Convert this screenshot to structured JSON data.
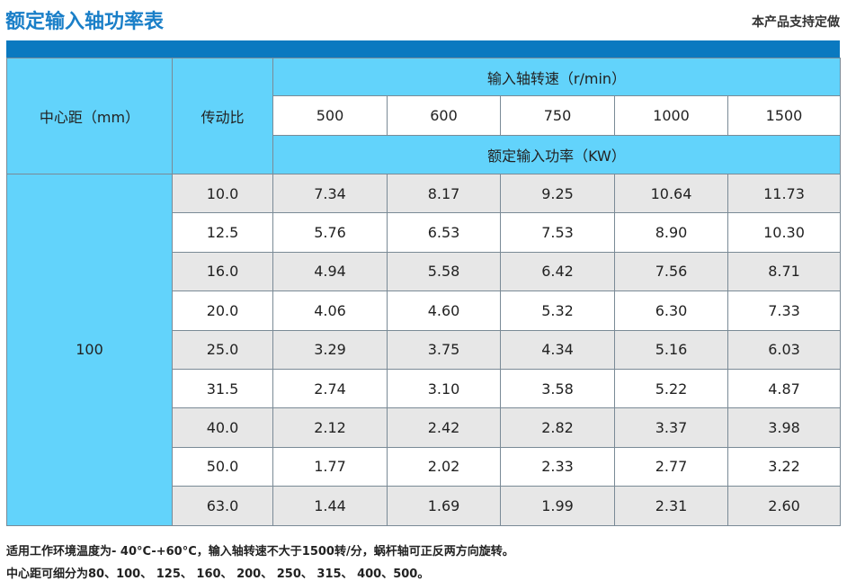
{
  "title": "额定输入轴功率表",
  "note_right": "本产品支持定做",
  "table": {
    "center_distance_header": "中心距（mm）",
    "ratio_header": "传动比",
    "speed_header": "输入轴转速（r/min）",
    "speeds": [
      "500",
      "600",
      "750",
      "1000",
      "1500"
    ],
    "power_header": "额定输入功率（KW）",
    "center_distance": "100",
    "rows": [
      {
        "ratio": "10.0",
        "values": [
          "7.34",
          "8.17",
          "9.25",
          "10.64",
          "11.73"
        ]
      },
      {
        "ratio": "12.5",
        "values": [
          "5.76",
          "6.53",
          "7.53",
          "8.90",
          "10.30"
        ]
      },
      {
        "ratio": "16.0",
        "values": [
          "4.94",
          "5.58",
          "6.42",
          "7.56",
          "8.71"
        ]
      },
      {
        "ratio": "20.0",
        "values": [
          "4.06",
          "4.60",
          "5.32",
          "6.30",
          "7.33"
        ]
      },
      {
        "ratio": "25.0",
        "values": [
          "3.29",
          "3.75",
          "4.34",
          "5.16",
          "6.03"
        ]
      },
      {
        "ratio": "31.5",
        "values": [
          "2.74",
          "3.10",
          "3.58",
          "5.22",
          "4.87"
        ]
      },
      {
        "ratio": "40.0",
        "values": [
          "2.12",
          "2.42",
          "2.82",
          "3.37",
          "3.98"
        ]
      },
      {
        "ratio": "50.0",
        "values": [
          "1.77",
          "2.02",
          "2.33",
          "2.77",
          "3.22"
        ]
      },
      {
        "ratio": "63.0",
        "values": [
          "1.44",
          "1.69",
          "1.99",
          "2.31",
          "2.60"
        ]
      }
    ]
  },
  "footer": {
    "line1": "适用工作环境温度为- 40°C-+60°C，输入轴转速不大于1500转/分，蜗杆轴可正反两方向旋转。",
    "line2": "中心距可细分为80、100、 125、 160、 200、 250、 315、 400、500。"
  }
}
